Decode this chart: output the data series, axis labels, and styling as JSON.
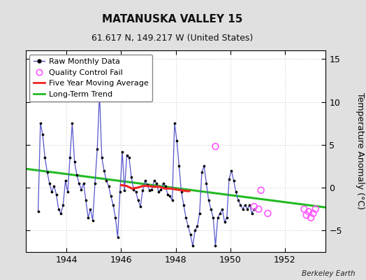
{
  "title": "MATANUSKA VALLEY 15",
  "subtitle": "61.617 N, 149.217 W (United States)",
  "ylabel": "Temperature Anomaly (°C)",
  "credit": "Berkeley Earth",
  "xlim": [
    1942.5,
    1953.5
  ],
  "ylim": [
    -7.5,
    16
  ],
  "yticks": [
    -5,
    0,
    5,
    10,
    15
  ],
  "xticks": [
    1944,
    1946,
    1948,
    1950,
    1952
  ],
  "fig_bg_color": "#e0e0e0",
  "plot_bg_color": "#ffffff",
  "raw_x": [
    1942.958,
    1943.042,
    1943.125,
    1943.208,
    1943.292,
    1943.375,
    1943.458,
    1943.542,
    1943.625,
    1943.708,
    1943.792,
    1943.875,
    1943.958,
    1944.042,
    1944.125,
    1944.208,
    1944.292,
    1944.375,
    1944.458,
    1944.542,
    1944.625,
    1944.708,
    1944.792,
    1944.875,
    1944.958,
    1945.042,
    1945.125,
    1945.208,
    1945.292,
    1945.375,
    1945.458,
    1945.542,
    1945.625,
    1945.708,
    1945.792,
    1945.875,
    1945.958,
    1946.042,
    1946.125,
    1946.208,
    1946.292,
    1946.375,
    1946.458,
    1946.542,
    1946.625,
    1946.708,
    1946.792,
    1946.875,
    1946.958,
    1947.042,
    1947.125,
    1947.208,
    1947.292,
    1947.375,
    1947.458,
    1947.542,
    1947.625,
    1947.708,
    1947.792,
    1947.875,
    1947.958,
    1948.042,
    1948.125,
    1948.208,
    1948.292,
    1948.375,
    1948.458,
    1948.542,
    1948.625,
    1948.708,
    1948.792,
    1948.875,
    1948.958,
    1949.042,
    1949.125,
    1949.208,
    1949.292,
    1949.375,
    1949.458,
    1949.542,
    1949.625,
    1949.708,
    1949.792,
    1949.875,
    1949.958,
    1950.042,
    1950.125,
    1950.208,
    1950.292,
    1950.375,
    1950.458,
    1950.542,
    1950.625,
    1950.708,
    1950.792,
    1950.875
  ],
  "raw_y": [
    -2.8,
    7.5,
    6.2,
    3.5,
    1.8,
    0.5,
    -0.5,
    0.2,
    -0.8,
    -2.5,
    -3.0,
    -2.0,
    0.8,
    -0.5,
    3.5,
    7.5,
    3.0,
    1.5,
    0.5,
    -0.2,
    0.5,
    -1.5,
    -3.5,
    -2.5,
    -3.8,
    0.5,
    4.5,
    11.0,
    3.5,
    2.0,
    0.8,
    0.2,
    -1.0,
    -2.0,
    -3.5,
    -5.8,
    -0.5,
    4.2,
    -0.3,
    3.8,
    3.5,
    1.2,
    -0.2,
    -0.5,
    -1.5,
    -2.2,
    -0.3,
    0.8,
    0.3,
    -0.3,
    -0.2,
    0.8,
    0.5,
    -0.5,
    -0.2,
    0.5,
    0.2,
    -0.8,
    -1.0,
    -1.5,
    7.5,
    5.5,
    2.5,
    -0.5,
    -2.0,
    -3.5,
    -4.5,
    -5.5,
    -6.8,
    -5.0,
    -4.5,
    -3.0,
    1.8,
    2.5,
    0.5,
    -1.5,
    -2.5,
    -3.5,
    -6.8,
    -3.5,
    -3.0,
    -2.5,
    -4.0,
    -3.5,
    1.0,
    2.0,
    0.8,
    -0.5,
    -1.5,
    -2.0,
    -2.5,
    -2.0,
    -2.5,
    -2.0,
    -3.0,
    -2.5
  ],
  "qc_fail_x": [
    1949.458,
    1950.875,
    1951.042,
    1951.125,
    1951.375,
    1952.708,
    1952.792,
    1952.875,
    1952.958,
    1953.042,
    1953.125
  ],
  "qc_fail_y": [
    4.8,
    -2.2,
    -2.5,
    -0.3,
    -3.0,
    -2.5,
    -3.2,
    -2.8,
    -3.5,
    -3.0,
    -2.5
  ],
  "moving_avg_x": [
    1946.0,
    1946.2,
    1946.4,
    1946.6,
    1946.8,
    1947.0,
    1947.2,
    1947.4,
    1947.6,
    1947.8,
    1948.0,
    1948.2,
    1948.4,
    1948.5
  ],
  "moving_avg_y": [
    0.3,
    0.2,
    -0.1,
    0.0,
    0.2,
    0.2,
    0.1,
    0.1,
    -0.1,
    -0.1,
    -0.2,
    -0.3,
    -0.4,
    -0.4
  ],
  "trend_x": [
    1942.5,
    1953.5
  ],
  "trend_y": [
    2.2,
    -2.3
  ],
  "raw_color": "#5555cc",
  "raw_marker_color": "#000000",
  "qc_color": "#ff55ff",
  "moving_avg_color": "#ee2222",
  "trend_color": "#22bb22",
  "legend_fontsize": 8,
  "title_fontsize": 11,
  "subtitle_fontsize": 9,
  "axis_fontsize": 9
}
